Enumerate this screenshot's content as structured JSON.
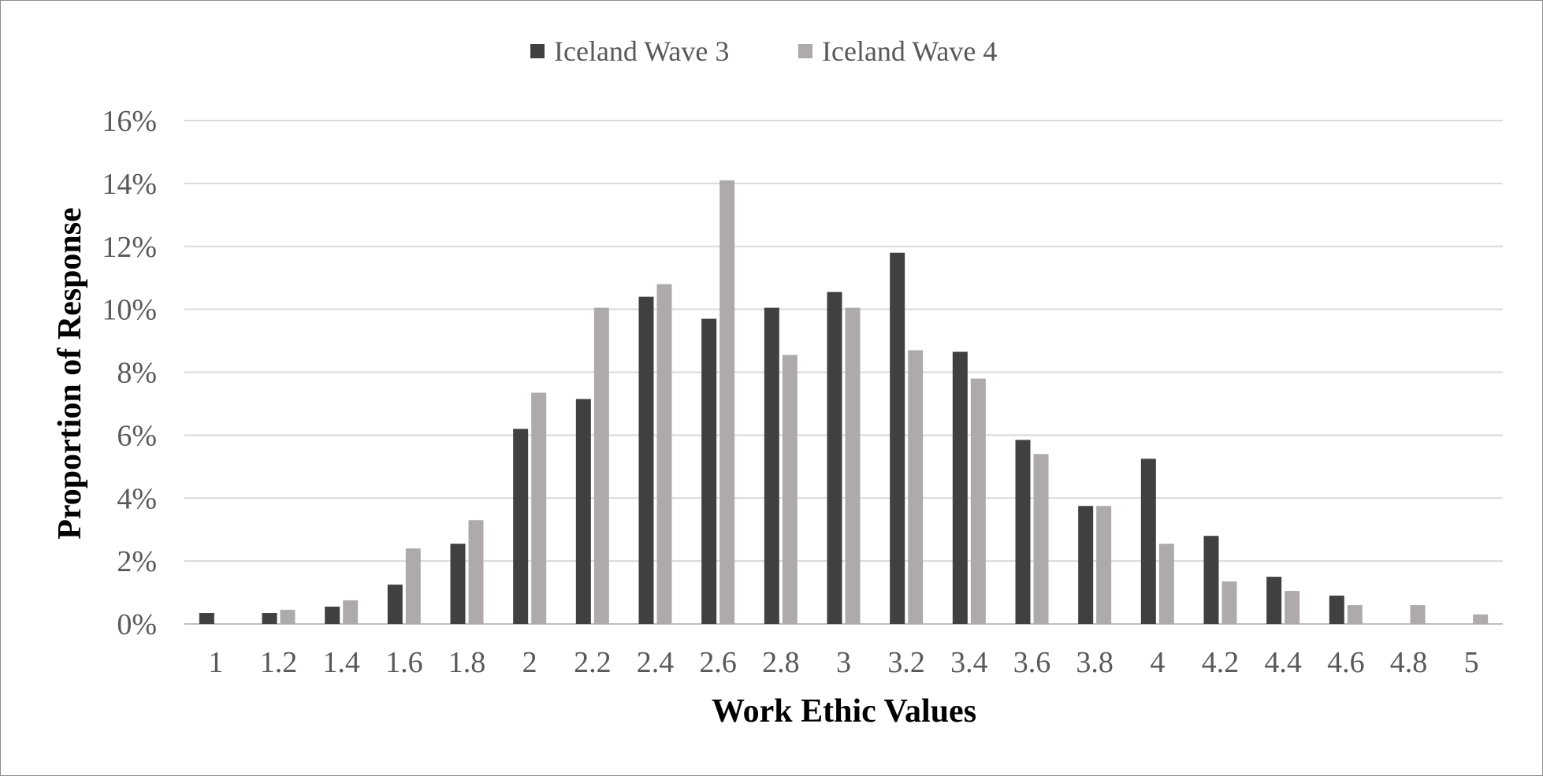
{
  "chart_data": {
    "type": "bar",
    "title": "",
    "xlabel": "Work Ethic Values",
    "ylabel": "Proportion of Response",
    "categories": [
      "1",
      "1.2",
      "1.4",
      "1.6",
      "1.8",
      "2",
      "2.2",
      "2.4",
      "2.6",
      "2.8",
      "3",
      "3.2",
      "3.4",
      "3.6",
      "3.8",
      "4",
      "4.2",
      "4.4",
      "4.6",
      "4.8",
      "5"
    ],
    "series": [
      {
        "name": "Iceland Wave 3",
        "color": "#404040",
        "values": [
          0.35,
          0.35,
          0.55,
          1.25,
          2.55,
          6.2,
          7.15,
          10.4,
          9.7,
          10.05,
          10.55,
          11.8,
          8.65,
          5.85,
          3.75,
          5.25,
          2.8,
          1.5,
          0.9,
          0,
          0
        ]
      },
      {
        "name": "Iceland Wave 4",
        "color": "#aeaaaa",
        "values": [
          0,
          0.45,
          0.75,
          2.4,
          3.3,
          7.35,
          10.05,
          10.8,
          14.1,
          8.55,
          10.05,
          8.7,
          7.8,
          5.4,
          3.75,
          2.55,
          1.35,
          1.05,
          0.6,
          0.6,
          0.3
        ]
      }
    ],
    "ylim": [
      0,
      16
    ],
    "yticks": [
      "0%",
      "2%",
      "4%",
      "6%",
      "8%",
      "10%",
      "12%",
      "14%",
      "16%"
    ],
    "grid": true,
    "legend_position": "top-center"
  }
}
